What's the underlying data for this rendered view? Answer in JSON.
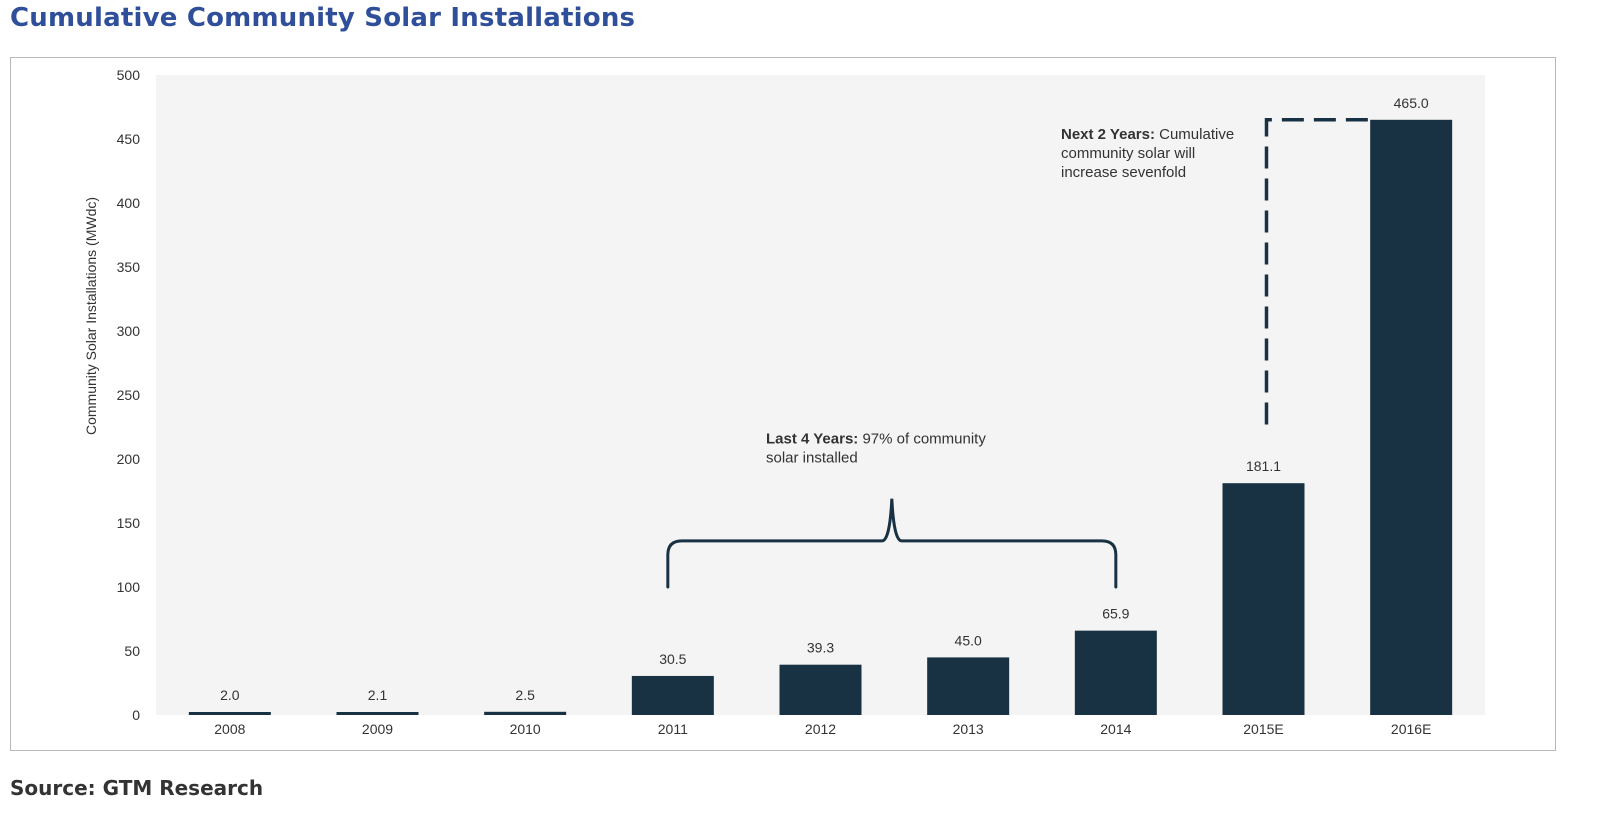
{
  "header": {
    "title": "Cumulative Community Solar Installations"
  },
  "footer": {
    "source": "Source: GTM Research"
  },
  "colors": {
    "bar": "#183244",
    "plot_bg": "#f4f4f4",
    "title": "#2f4f9a"
  },
  "chart_data": {
    "type": "bar",
    "title": "Cumulative Community Solar Installations",
    "ylabel": "Community Solar Installations (MWdc)",
    "xlabel": "",
    "categories": [
      "2008",
      "2009",
      "2010",
      "2011",
      "2012",
      "2013",
      "2014",
      "2015E",
      "2016E"
    ],
    "values": [
      2.0,
      2.1,
      2.5,
      30.5,
      39.3,
      45.0,
      65.9,
      181.1,
      465.0
    ],
    "value_labels": [
      "2.0",
      "2.1",
      "2.5",
      "30.5",
      "39.3",
      "45.0",
      "65.9",
      "181.1",
      "465.0"
    ],
    "ylim": [
      0,
      500
    ],
    "yticks": [
      0,
      50,
      100,
      150,
      200,
      250,
      300,
      350,
      400,
      450,
      500
    ],
    "grid": false,
    "legend": "none",
    "annotations": [
      {
        "bold": "Last 4 Years:",
        "lines": [
          " 97% of community",
          "solar installed"
        ],
        "spans": [
          "2011",
          "2014"
        ]
      },
      {
        "bold": "Next 2 Years:",
        "lines": [
          " Cumulative",
          "community solar will",
          "increase sevenfold"
        ],
        "spans": [
          "2015E",
          "2016E"
        ]
      }
    ]
  }
}
